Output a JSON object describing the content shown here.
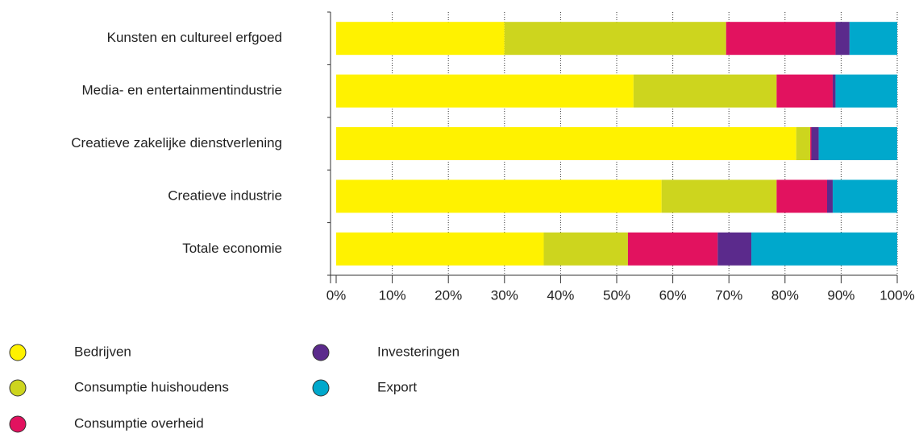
{
  "chart_data": {
    "type": "stacked-bar-horizontal",
    "categories": [
      "Kunsten en cultureel erfgoed",
      "Media- en entertainmentindustrie",
      "Creatieve zakelijke dienstverlening",
      "Creatieve industrie",
      "Totale economie"
    ],
    "series": [
      {
        "name": "Bedrijven",
        "color": "#fff200",
        "values": [
          30,
          53,
          82,
          58,
          37
        ]
      },
      {
        "name": "Consumptie huishoudens",
        "color": "#cdd51e",
        "values": [
          39.5,
          25.5,
          2.5,
          20.5,
          15
        ]
      },
      {
        "name": "Consumptie overheid",
        "color": "#e2125f",
        "values": [
          19.5,
          10,
          0.2,
          9,
          16
        ]
      },
      {
        "name": "Investeringen",
        "color": "#5b2a8c",
        "values": [
          2.5,
          0.5,
          1.3,
          1,
          6
        ]
      },
      {
        "name": "Export",
        "color": "#00a8cc",
        "values": [
          8.5,
          11,
          14,
          11.5,
          26
        ]
      }
    ],
    "xlim": [
      0,
      100
    ],
    "xticks": [
      {
        "value": 0,
        "label": "0%"
      },
      {
        "value": 10,
        "label": "10%"
      },
      {
        "value": 20,
        "label": "20%"
      },
      {
        "value": 30,
        "label": "30%"
      },
      {
        "value": 40,
        "label": "40%"
      },
      {
        "value": 50,
        "label": "50%"
      },
      {
        "value": 60,
        "label": "60%"
      },
      {
        "value": 70,
        "label": "70%"
      },
      {
        "value": 80,
        "label": "80%"
      },
      {
        "value": 90,
        "label": "90%"
      },
      {
        "value": 100,
        "label": "100%"
      }
    ],
    "grid": true
  }
}
